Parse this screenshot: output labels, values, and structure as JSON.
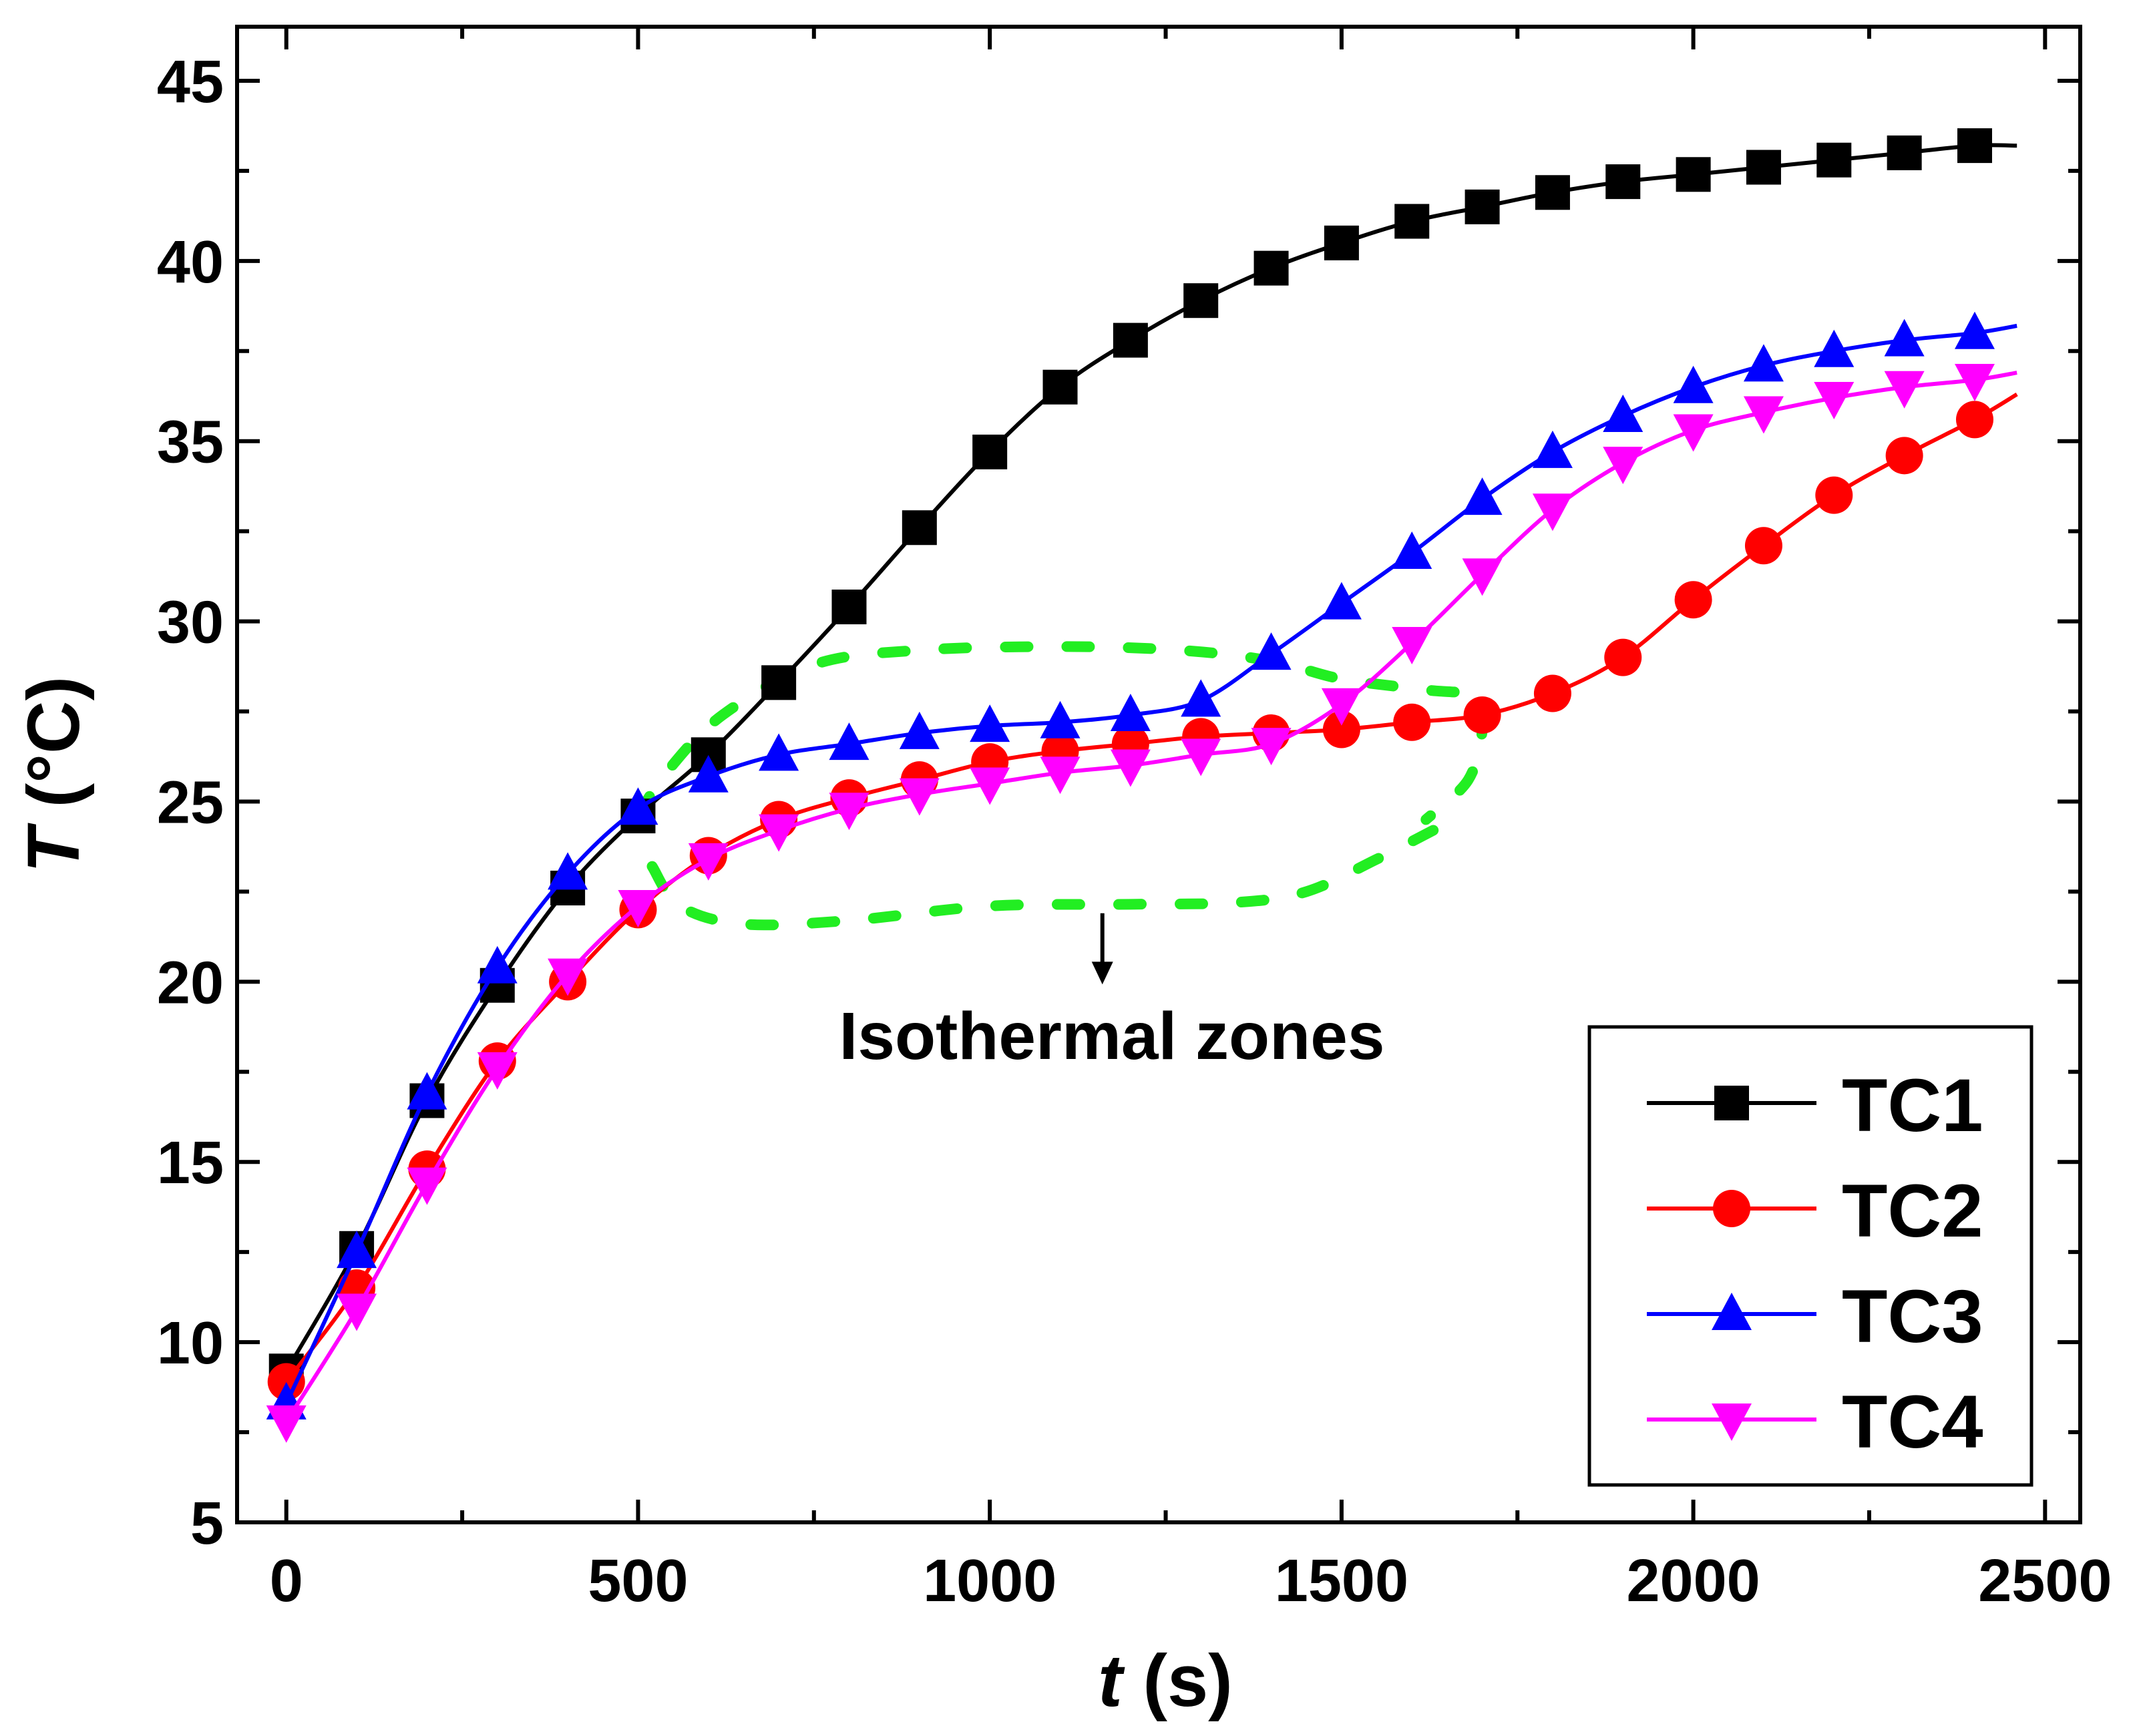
{
  "chart_data": {
    "type": "line",
    "xlabel_var": "t",
    "xlabel_unit": " (s)",
    "ylabel_var": "T",
    "ylabel_unit": " (°C)",
    "xlim": [
      -70,
      2550
    ],
    "ylim": [
      5,
      46.5
    ],
    "x_ticks": [
      0,
      500,
      1000,
      1500,
      2000,
      2500
    ],
    "y_ticks": [
      5,
      10,
      15,
      20,
      25,
      30,
      35,
      40,
      45
    ],
    "x_tick_labels": [
      "0",
      "500",
      "1000",
      "1500",
      "2000",
      "2500"
    ],
    "y_tick_labels": [
      "5",
      "10",
      "15",
      "20",
      "25",
      "30",
      "35",
      "40",
      "45"
    ],
    "legend_position": "bottom-right",
    "annotation": {
      "text": "Isothermal zones",
      "arrow_from": [
        1160,
        21.9
      ],
      "arrow_to": [
        1160,
        20.0
      ],
      "zone_color": "#22ee22"
    },
    "x": [
      0,
      100,
      200,
      300,
      400,
      500,
      600,
      700,
      800,
      900,
      1000,
      1100,
      1200,
      1300,
      1400,
      1500,
      1600,
      1700,
      1800,
      1900,
      2000,
      2100,
      2200,
      2300,
      2400
    ],
    "series": [
      {
        "name": "TC1",
        "color": "#000000",
        "marker": "square",
        "values": [
          9.2,
          12.6,
          16.7,
          19.9,
          22.6,
          24.6,
          26.3,
          28.3,
          30.4,
          32.6,
          34.7,
          36.5,
          37.8,
          38.9,
          39.8,
          40.5,
          41.1,
          41.5,
          41.9,
          42.2,
          42.4,
          42.6,
          42.8,
          43.0,
          43.2
        ],
        "end": [
          2460,
          43.2
        ]
      },
      {
        "name": "TC2",
        "color": "#ff0000",
        "marker": "circle",
        "values": [
          8.9,
          11.5,
          14.8,
          17.8,
          20.0,
          22.0,
          23.5,
          24.5,
          25.1,
          25.6,
          26.1,
          26.4,
          26.6,
          26.8,
          26.9,
          27.0,
          27.2,
          27.4,
          28.0,
          29.0,
          30.6,
          32.1,
          33.5,
          34.6,
          35.6
        ],
        "end": [
          2460,
          36.3
        ]
      },
      {
        "name": "TC3",
        "color": "#0000ff",
        "marker": "triangle-up",
        "values": [
          8.3,
          12.5,
          16.9,
          20.4,
          23.0,
          24.8,
          25.7,
          26.3,
          26.6,
          26.9,
          27.1,
          27.2,
          27.4,
          27.8,
          29.1,
          30.5,
          31.9,
          33.4,
          34.7,
          35.7,
          36.5,
          37.1,
          37.5,
          37.8,
          38.0
        ],
        "end": [
          2460,
          38.2
        ]
      },
      {
        "name": "TC4",
        "color": "#ff00ff",
        "marker": "triangle-down",
        "values": [
          7.8,
          10.9,
          14.4,
          17.6,
          20.2,
          22.1,
          23.4,
          24.2,
          24.8,
          25.2,
          25.5,
          25.8,
          26.0,
          26.3,
          26.6,
          27.7,
          29.4,
          31.3,
          33.1,
          34.4,
          35.3,
          35.8,
          36.2,
          36.5,
          36.7
        ],
        "end": [
          2460,
          36.9
        ]
      }
    ]
  }
}
